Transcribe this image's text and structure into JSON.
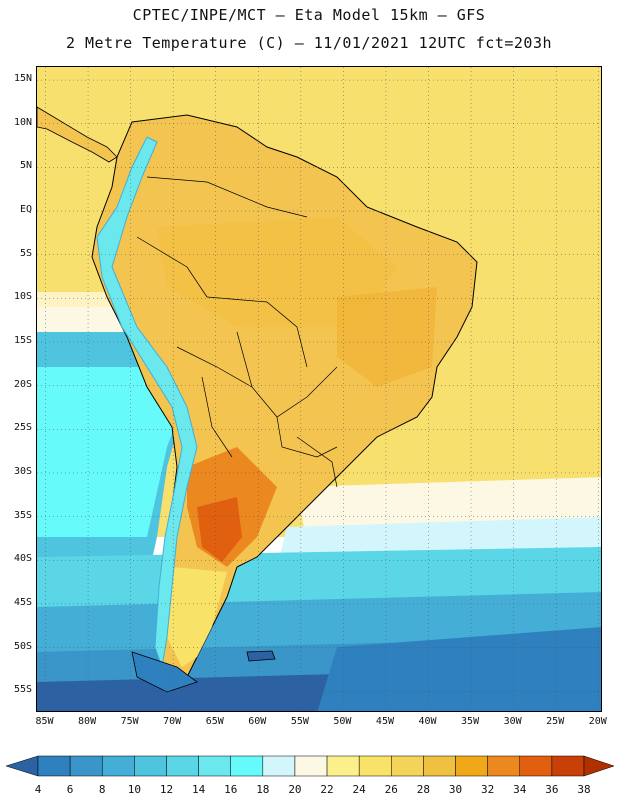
{
  "title": {
    "line1": "CPTEC/INPE/MCT –  Eta Model 15km – GFS",
    "line2": "2 Metre Temperature (C) – 11/01/2021 12UTC fct=203h"
  },
  "axes": {
    "lat_labels": [
      "15N",
      "10N",
      "5N",
      "EQ",
      "5S",
      "10S",
      "15S",
      "20S",
      "25S",
      "30S",
      "35S",
      "40S",
      "45S",
      "50S",
      "55S"
    ],
    "lon_labels": [
      "85W",
      "80W",
      "75W",
      "70W",
      "65W",
      "60W",
      "55W",
      "50W",
      "45W",
      "40W",
      "35W",
      "30W",
      "25W",
      "20W"
    ],
    "lat_values": [
      15,
      10,
      5,
      0,
      -5,
      -10,
      -15,
      -20,
      -25,
      -30,
      -35,
      -40,
      -45,
      -50,
      -55
    ],
    "lon_values": [
      -85,
      -80,
      -75,
      -70,
      -65,
      -60,
      -55,
      -50,
      -45,
      -40,
      -35,
      -30,
      -25,
      -20
    ],
    "lat_range": [
      -57.5,
      16.5
    ],
    "lon_range": [
      -86,
      -19.5
    ]
  },
  "legend": {
    "labels": [
      "4",
      "6",
      "8",
      "10",
      "12",
      "14",
      "16",
      "18",
      "20",
      "22",
      "24",
      "26",
      "28",
      "30",
      "32",
      "34",
      "36",
      "38"
    ],
    "colors": [
      "#2c62a3",
      "#2f80be",
      "#3a95c8",
      "#44aed6",
      "#4ec4de",
      "#5bd6e6",
      "#6ae8ee",
      "#66fafa",
      "#d2f6fc",
      "#fdf8e4",
      "#fcf08c",
      "#f8e268",
      "#f4d458",
      "#f0c040",
      "#f0a818",
      "#ec8820",
      "#e06010",
      "#c84008",
      "#b03000"
    ]
  },
  "colors": {
    "ocean_warm": "#f8e06e",
    "land_warm": "#f4c450",
    "hot": "#e0782c",
    "andes_cold": "#6ae4ee",
    "cold_sea": "#3aa4d0",
    "deep_cold": "#2c62a3",
    "coastline": "#000000",
    "grid": "#555555"
  }
}
